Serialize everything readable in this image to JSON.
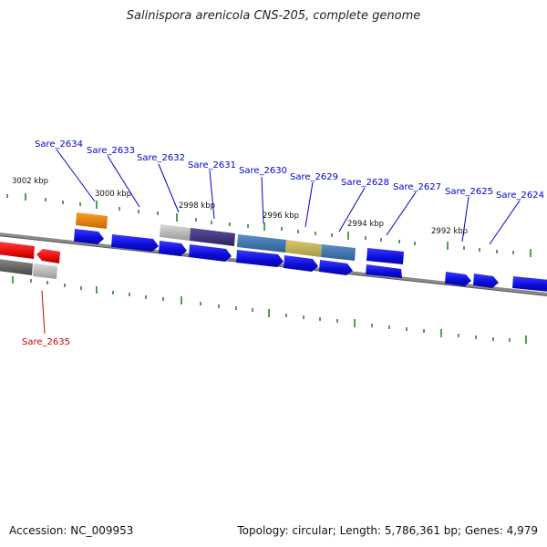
{
  "title": "Salinispora arenicola CNS-205, complete genome",
  "accession": "Accession: NC_009953",
  "summary": "Topology: circular; Length: 5,786,361 bp; Genes: 4,979",
  "colors": {
    "forward_gene": "#1010e0",
    "reverse_gene": "#ee1111",
    "label_forward": "#0000cc",
    "label_reverse": "#cc0000",
    "backbone": "#777777",
    "tick": "#1a7a1a"
  },
  "scale_labels": [
    "3002 kbp",
    "3000 kbp",
    "2998 kbp",
    "2996 kbp",
    "2994 kbp",
    "2992 kbp"
  ],
  "gene_labels": [
    {
      "text": "Sare_2634",
      "strand": "forward"
    },
    {
      "text": "Sare_2633",
      "strand": "forward"
    },
    {
      "text": "Sare_2632",
      "strand": "forward"
    },
    {
      "text": "Sare_2631",
      "strand": "forward"
    },
    {
      "text": "Sare_2630",
      "strand": "forward"
    },
    {
      "text": "Sare_2629",
      "strand": "forward"
    },
    {
      "text": "Sare_2628",
      "strand": "forward"
    },
    {
      "text": "Sare_2627",
      "strand": "forward"
    },
    {
      "text": "Sare_2625",
      "strand": "forward"
    },
    {
      "text": "Sare_2624",
      "strand": "forward"
    },
    {
      "text": "Sare_2635",
      "strand": "reverse"
    }
  ]
}
